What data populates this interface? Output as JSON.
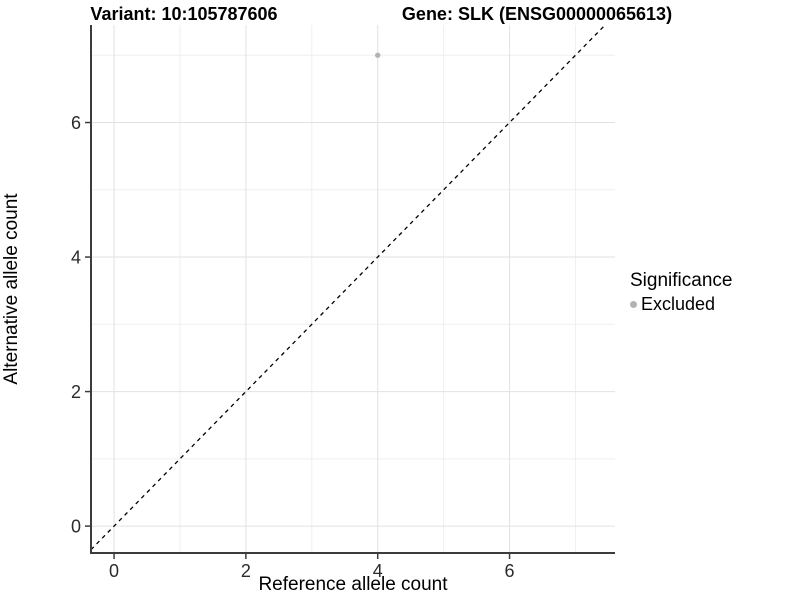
{
  "chart_data": {
    "type": "scatter",
    "title_left": "Variant: 10:105787606",
    "title_right": "Gene: SLK (ENSG00000065613)",
    "xlabel": "Reference allele count",
    "ylabel": "Alternative allele count",
    "xlim": [
      -0.35,
      7.6
    ],
    "ylim": [
      -0.4,
      7.45
    ],
    "x_major_ticks": [
      0,
      2,
      4,
      6
    ],
    "x_minor_gridlines": [
      1,
      3,
      5,
      7
    ],
    "y_major_ticks": [
      0,
      2,
      4,
      6
    ],
    "y_minor_gridlines": [
      1,
      3,
      5,
      7
    ],
    "grid": true,
    "points": [
      {
        "x": 4,
        "y": 7,
        "series": "Excluded"
      }
    ],
    "reference_line": {
      "type": "identity",
      "slope": 1,
      "intercept": 0,
      "style": "dashed",
      "color": "#000000"
    },
    "legend": {
      "title": "Significance",
      "position": "right",
      "entries": [
        {
          "label": "Excluded",
          "color": "#b3b3b3",
          "marker": "circle"
        }
      ]
    },
    "colors": {
      "background": "#ffffff",
      "grid_major": "#e2e2e2",
      "grid_minor": "#efefef",
      "axis_line": "#3c3c3c",
      "tick_label": "#2b2b2b",
      "point": "#b3b3b3",
      "dashed_line": "#000000"
    }
  }
}
